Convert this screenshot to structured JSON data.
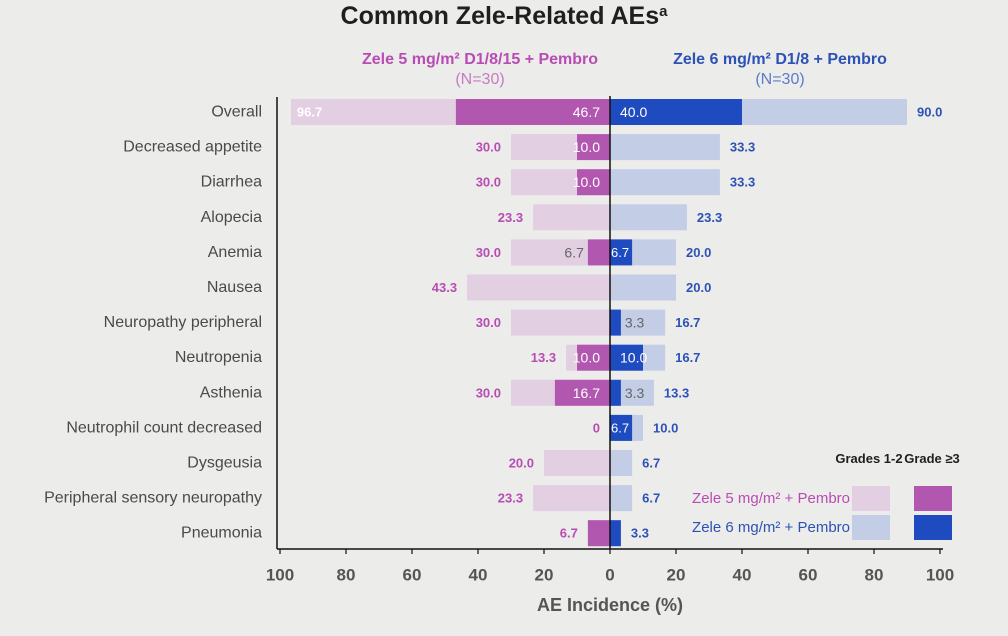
{
  "title": "Common Zele-Related AEs",
  "title_footnote": "a",
  "arms": {
    "left": {
      "name": "Zele 5 mg/m² D1/8/15 + Pembro",
      "n": "(N=30)"
    },
    "right": {
      "name": "Zele 6 mg/m² D1/8 + Pembro",
      "n": "(N=30)"
    }
  },
  "legend": {
    "grades_12": "Grades 1-2",
    "grade_3": "Grade ≥3",
    "left_label": "Zele 5 mg/m² + Pembro",
    "right_label": "Zele 6 mg/m² + Pembro"
  },
  "colors": {
    "left_any": "#e3cfe2",
    "left_g3": "#b257b0",
    "right_any": "#c4cde6",
    "right_g3": "#1f4bc0",
    "left_text": "#b94cb4",
    "right_text": "#2d52b6"
  },
  "chart_data": {
    "type": "bar",
    "orientation": "horizontal-diverging",
    "xlabel": "AE Incidence (%)",
    "xlim": [
      -100,
      100
    ],
    "x_ticks": [
      "100",
      "80",
      "60",
      "40",
      "20",
      "0",
      "20",
      "40",
      "60",
      "80",
      "100"
    ],
    "categories": [
      "Overall",
      "Decreased appetite",
      "Diarrhea",
      "Alopecia",
      "Anemia",
      "Nausea",
      "Neuropathy peripheral",
      "Neutropenia",
      "Asthenia",
      "Neutrophil count decreased",
      "Dysgeusia",
      "Peripheral sensory neuropathy",
      "Pneumonia"
    ],
    "series": [
      {
        "name": "Zele 5 mg/m² + Pembro Grades 1-2",
        "values": [
          96.7,
          30.0,
          30.0,
          23.3,
          30.0,
          43.3,
          30.0,
          13.3,
          30.0,
          0,
          20.0,
          23.3,
          6.7
        ]
      },
      {
        "name": "Zele 5 mg/m² + Pembro Grade ≥3",
        "values": [
          46.7,
          10.0,
          10.0,
          0,
          6.7,
          0,
          0,
          10.0,
          16.7,
          0,
          0,
          0,
          6.7
        ]
      },
      {
        "name": "Zele 6 mg/m² + Pembro Grades 1-2",
        "values": [
          90.0,
          33.3,
          33.3,
          23.3,
          20.0,
          20.0,
          16.7,
          16.7,
          13.3,
          10.0,
          6.7,
          6.7,
          3.3
        ]
      },
      {
        "name": "Zele 6 mg/m² + Pembro Grade ≥3",
        "values": [
          40.0,
          0,
          0,
          0,
          6.7,
          0,
          3.3,
          10.0,
          3.3,
          6.7,
          0,
          0,
          3.3
        ]
      }
    ],
    "total_labels_left": [
      "96.7",
      "30.0",
      "30.0",
      "23.3",
      "30.0",
      "43.3",
      "30.0",
      "13.3",
      "30.0",
      "0",
      "20.0",
      "23.3",
      "6.7"
    ],
    "total_labels_right": [
      "90.0",
      "33.3",
      "33.3",
      "23.3",
      "20.0",
      "20.0",
      "16.7",
      "16.7",
      "13.3",
      "10.0",
      "6.7",
      "6.7",
      "3.3"
    ],
    "g3_labels_left": [
      "46.7",
      "10.0",
      "10.0",
      "",
      "6.7",
      "",
      "",
      "10.0",
      "16.7",
      "",
      "",
      "",
      ""
    ],
    "g3_labels_right": [
      "40.0",
      "",
      "",
      "",
      "6.7",
      "",
      "3.3",
      "10.0",
      "3.3",
      "6.7",
      "",
      "",
      ""
    ]
  }
}
